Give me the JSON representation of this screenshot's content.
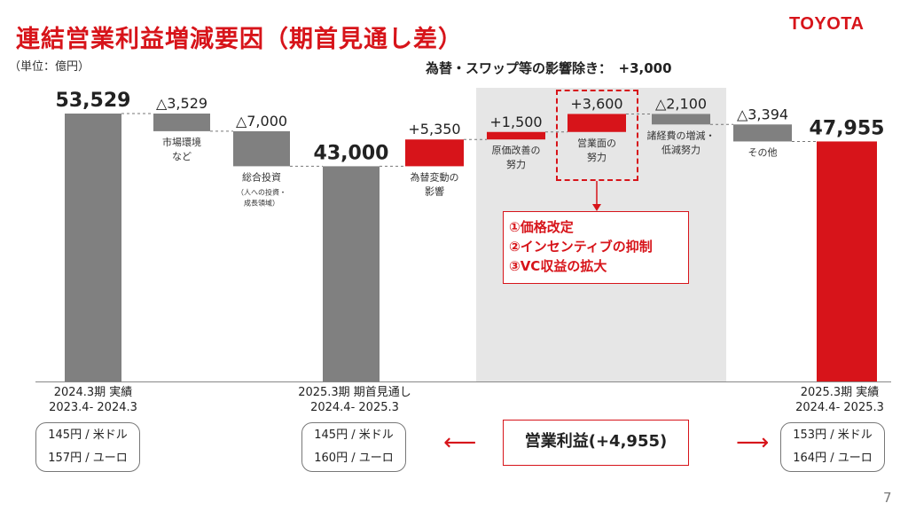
{
  "slide": {
    "title": "連結営業利益増減要因（期首見通し差）",
    "logo": "TOYOTA",
    "unit": "（単位：億円）",
    "fx_note": "為替・スワップ等の影響除き：　+3,000",
    "page_number": "7"
  },
  "chart_data": {
    "type": "bar",
    "subtype": "waterfall",
    "categories": [
      "2024.3期 実績",
      "市場環境\nなど",
      "総合投資\n（人への投資・\n成長領域）",
      "2025.3期 期首見通し",
      "為替変動の\n影響",
      "原価改善の\n努力",
      "営業面の\n努力",
      "諸経費の増減・\n低減努力",
      "その他",
      "2025.3期 実績"
    ],
    "values": [
      53529,
      -3529,
      -7000,
      43000,
      5350,
      1500,
      3600,
      -2100,
      -3394,
      47955
    ],
    "value_labels": [
      "53,529",
      "△3,529",
      "△7,000",
      "43,000",
      "+5,350",
      "+1,500",
      "+3,600",
      "△2,100",
      "△3,394",
      "47,955"
    ],
    "bar_kinds": [
      "total",
      "delta",
      "delta",
      "total",
      "delta",
      "delta",
      "delta",
      "delta",
      "delta",
      "total"
    ],
    "colors": [
      "#808080",
      "#808080",
      "#808080",
      "#808080",
      "#d7141a",
      "#d7141a",
      "#d7141a",
      "#808080",
      "#808080",
      "#d7141a"
    ],
    "ylim": [
      0,
      56000
    ]
  },
  "period_labels": [
    {
      "name": "2024.3期 実績",
      "range": "2023.4- 2024.3",
      "usd": "145円 / 米ドル",
      "eur": "157円 / ユーロ"
    },
    {
      "name": "2025.3期 期首見通し",
      "range": "2024.4- 2025.3",
      "usd": "145円 / 米ドル",
      "eur": "160円 / ユーロ"
    },
    {
      "name": "2025.3期 実績",
      "range": "2024.4- 2025.3",
      "usd": "153円 / 米ドル",
      "eur": "164円 / ユーロ"
    }
  ],
  "measures": [
    "①価格改定",
    "②インセンティブの抑制",
    "③VC収益の拡大"
  ],
  "operating_profit": "営業利益(+4,955)",
  "arrows": {
    "left": "⟵",
    "right": "⟶"
  }
}
